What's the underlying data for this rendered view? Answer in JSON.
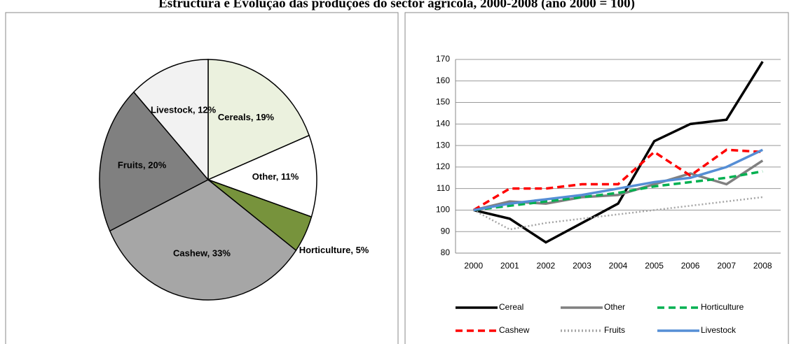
{
  "title": "Estructura e Evolução das produções do sector agrícola, 2000-2008 (ano 2000 = 100)",
  "chart_data": [
    {
      "type": "pie",
      "values": [
        19,
        11,
        5,
        33,
        20,
        12
      ],
      "value_labels": [
        "Cereals, 19%",
        "Other, 11%",
        "Horticulture, 5%",
        "Cashew, 33%",
        "Fruits, 20%",
        "Livestock, 12%"
      ],
      "colors": [
        "#ebf1de",
        "#ffffff",
        "#77933c",
        "#a6a6a6",
        "#808080",
        "#f2f2f2"
      ]
    },
    {
      "type": "line",
      "categories": [
        "2000",
        "2001",
        "2002",
        "2003",
        "2004",
        "2005",
        "2006",
        "2007",
        "2008"
      ],
      "ylim": [
        80,
        170
      ],
      "yticks": [
        80,
        90,
        100,
        110,
        120,
        130,
        140,
        150,
        160,
        170
      ],
      "grid": true,
      "legend": "bottom",
      "series": [
        {
          "name": "Cereal",
          "color": "#000000",
          "style": "solid",
          "values": [
            100,
            96,
            85,
            94,
            103,
            132,
            140,
            142,
            169
          ]
        },
        {
          "name": "Other",
          "color": "#808080",
          "style": "solid",
          "values": [
            100,
            104,
            103,
            106,
            107,
            112,
            117,
            112,
            123
          ]
        },
        {
          "name": "Horticulture",
          "color": "#00b050",
          "style": "dashed",
          "values": [
            100,
            102,
            104,
            106,
            108,
            111,
            113,
            115,
            118
          ]
        },
        {
          "name": "Cashew",
          "color": "#ff0000",
          "style": "dashed",
          "values": [
            100,
            110,
            110,
            112,
            112,
            127,
            116,
            128,
            127
          ]
        },
        {
          "name": "Fruits",
          "color": "#a6a6a6",
          "style": "dotted",
          "values": [
            100,
            91,
            94,
            96,
            98,
            100,
            102,
            104,
            106
          ]
        },
        {
          "name": "Livestock",
          "color": "#558ed5",
          "style": "solid",
          "values": [
            100,
            103,
            105,
            107,
            110,
            113,
            115,
            120,
            128
          ]
        }
      ]
    }
  ]
}
